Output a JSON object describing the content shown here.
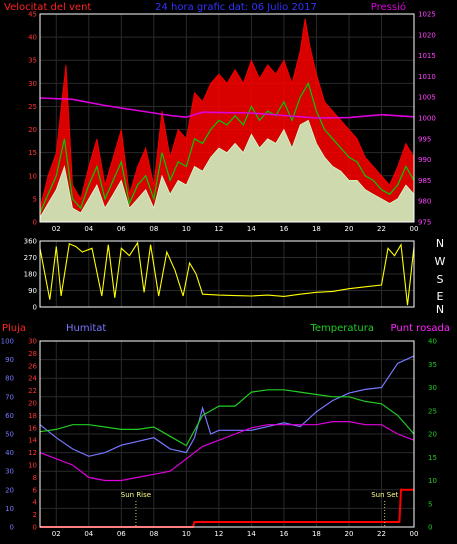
{
  "header": {
    "left": "Velocitat del vent",
    "center": "24 hora grafic dat: 06 Julio 2017",
    "right": "Pressió"
  },
  "colors": {
    "wind_gust": "#ff0000",
    "wind_speed": "#00cc00",
    "wind_avg": "#ccffcc",
    "pressure": "#dd00dd",
    "direction": "#ffff00",
    "rain": "#ff0000",
    "humidity": "#7777ff",
    "temperature": "#22cc22",
    "dewpoint": "#dd00dd",
    "sun_marker": "#ffff88",
    "grid": "#2a2a2a",
    "axis_text": "#ffffff"
  },
  "panel2": {
    "labels_right": [
      "N",
      "W",
      "S",
      "E",
      "N"
    ]
  },
  "panel3": {
    "labels": {
      "rain": "Pluja",
      "humidity": "Humitat",
      "temperature": "Temperatura",
      "dewpoint": "Punt rosada"
    },
    "sunrise": "Sun Rise",
    "sunset": "Sun Set"
  },
  "chart_data": [
    {
      "type": "line",
      "title": "24 hora grafic dat: 06 Julio 2017",
      "x_ticks": [
        "02",
        "04",
        "06",
        "08",
        "10",
        "12",
        "14",
        "16",
        "18",
        "20",
        "22",
        "00"
      ],
      "xlim": [
        1,
        24
      ],
      "grid": true,
      "y_left": {
        "label": "Velocitat del vent",
        "ylim": [
          0,
          45
        ],
        "ticks": [
          0,
          5,
          10,
          15,
          20,
          25,
          30,
          35,
          40,
          45
        ]
      },
      "y_right": {
        "label": "Pressió",
        "ylim": [
          975,
          1025
        ],
        "ticks": [
          975,
          980,
          985,
          990,
          995,
          1000,
          1005,
          1010,
          1015,
          1020,
          1025
        ]
      },
      "series": [
        {
          "name": "gust",
          "axis": "left",
          "x": [
            1,
            1.5,
            2,
            2.4,
            2.6,
            3,
            3.5,
            4,
            4.5,
            5,
            5.5,
            6,
            6.5,
            7,
            7.5,
            8,
            8.5,
            9,
            9.5,
            10,
            10.5,
            11,
            11.5,
            12,
            12.5,
            13,
            13.5,
            14,
            14.5,
            15,
            15.5,
            16,
            16.5,
            17,
            17.3,
            17.6,
            18,
            18.5,
            19,
            19.5,
            20,
            20.5,
            21,
            21.5,
            22,
            22.5,
            23,
            23.5,
            24
          ],
          "y": [
            3,
            10,
            15,
            28,
            34,
            8,
            5,
            12,
            18,
            8,
            14,
            20,
            6,
            12,
            16,
            8,
            24,
            14,
            20,
            18,
            28,
            26,
            30,
            32,
            30,
            33,
            30,
            35,
            31,
            34,
            32,
            35,
            30,
            37,
            44,
            38,
            32,
            26,
            24,
            22,
            20,
            18,
            14,
            12,
            10,
            8,
            12,
            17,
            14
          ]
        },
        {
          "name": "speed",
          "axis": "left",
          "x": [
            1,
            1.5,
            2,
            2.5,
            3,
            3.5,
            4,
            4.5,
            5,
            5.5,
            6,
            6.5,
            7,
            7.5,
            8,
            8.5,
            9,
            9.5,
            10,
            10.5,
            11,
            11.5,
            12,
            12.5,
            13,
            13.5,
            14,
            14.5,
            15,
            15.5,
            16,
            16.5,
            17,
            17.5,
            18,
            18.5,
            19,
            19.5,
            20,
            20.5,
            21,
            21.5,
            22,
            22.5,
            23,
            23.5,
            24
          ],
          "y": [
            2,
            6,
            10,
            18,
            5,
            3,
            8,
            12,
            5,
            9,
            13,
            4,
            8,
            10,
            5,
            15,
            9,
            13,
            12,
            18,
            17,
            20,
            22,
            21,
            23,
            21,
            25,
            22,
            24,
            23,
            26,
            22,
            27,
            30,
            24,
            20,
            18,
            16,
            14,
            13,
            10,
            9,
            7,
            6,
            8,
            12,
            9
          ]
        },
        {
          "name": "average",
          "axis": "left",
          "x": [
            1,
            1.5,
            2,
            2.5,
            3,
            3.5,
            4,
            4.5,
            5,
            5.5,
            6,
            6.5,
            7,
            7.5,
            8,
            8.5,
            9,
            9.5,
            10,
            10.5,
            11,
            11.5,
            12,
            12.5,
            13,
            13.5,
            14,
            14.5,
            15,
            15.5,
            16,
            16.5,
            17,
            17.5,
            18,
            18.5,
            19,
            19.5,
            20,
            20.5,
            21,
            21.5,
            22,
            22.5,
            23,
            23.5,
            24
          ],
          "y": [
            1,
            4,
            7,
            12,
            3,
            2,
            5,
            8,
            3,
            6,
            9,
            3,
            5,
            7,
            3,
            10,
            6,
            9,
            8,
            12,
            11,
            14,
            16,
            15,
            17,
            15,
            19,
            16,
            18,
            17,
            20,
            16,
            21,
            22,
            17,
            14,
            12,
            11,
            9,
            9,
            7,
            6,
            5,
            4,
            5,
            8,
            6
          ]
        },
        {
          "name": "pressure",
          "axis": "right",
          "x": [
            1,
            3,
            5,
            7,
            9,
            10,
            11,
            12,
            14,
            16,
            18,
            20,
            22,
            24
          ],
          "y": [
            1004.8,
            1004.5,
            1003.0,
            1001.8,
            1000.6,
            1000.2,
            1001.4,
            1001.3,
            1001.2,
            1000.6,
            1000.0,
            1000.1,
            1000.8,
            1000.3
          ]
        }
      ]
    },
    {
      "type": "line",
      "x_ticks": [
        "02",
        "04",
        "06",
        "08",
        "10",
        "12",
        "14",
        "16",
        "18",
        "20",
        "22",
        "00"
      ],
      "xlim": [
        1,
        24
      ],
      "y_left": {
        "ylim": [
          0,
          360
        ],
        "ticks": [
          0,
          90,
          180,
          270,
          360
        ]
      },
      "series": [
        {
          "name": "direction",
          "x": [
            1,
            1.6,
            2.0,
            2.3,
            2.8,
            3.2,
            3.6,
            4.2,
            4.8,
            5.2,
            5.6,
            6.0,
            6.5,
            7.0,
            7.4,
            7.8,
            8.3,
            8.8,
            9.3,
            9.8,
            10.2,
            10.6,
            11.0,
            12,
            13,
            14,
            15,
            16,
            17,
            18,
            19,
            20,
            21,
            22,
            22.4,
            22.8,
            23.2,
            23.6,
            24
          ],
          "y": [
            320,
            40,
            330,
            60,
            345,
            330,
            300,
            320,
            60,
            340,
            50,
            320,
            280,
            350,
            80,
            340,
            60,
            300,
            200,
            60,
            240,
            180,
            70,
            65,
            62,
            60,
            65,
            58,
            70,
            80,
            85,
            100,
            110,
            120,
            320,
            280,
            340,
            10,
            330
          ]
        }
      ]
    },
    {
      "type": "line",
      "x_ticks": [
        "02",
        "04",
        "06",
        "08",
        "10",
        "12",
        "14",
        "16",
        "18",
        "20",
        "22",
        "00"
      ],
      "xlim": [
        1,
        24
      ],
      "y_rain": {
        "label": "Pluja",
        "ylim": [
          0,
          30
        ],
        "ticks": [
          0,
          2,
          4,
          6,
          8,
          10,
          12,
          14,
          16,
          18,
          20,
          22,
          24,
          26,
          28,
          30
        ]
      },
      "y_humidity": {
        "label": "Humitat",
        "ylim": [
          0,
          100
        ],
        "ticks": [
          0,
          10,
          20,
          30,
          40,
          50,
          60,
          70,
          80,
          90,
          100
        ]
      },
      "y_temperature": {
        "label": "Temperatura",
        "ylim": [
          0,
          40
        ],
        "ticks": [
          0,
          5,
          10,
          15,
          20,
          25,
          30,
          35,
          40
        ]
      },
      "annotations": [
        {
          "text": "Sun Rise",
          "x": 6.9
        },
        {
          "text": "Sun Set",
          "x": 22.2
        }
      ],
      "series": [
        {
          "name": "Pluja",
          "axis": "rain",
          "x": [
            1,
            10.4,
            10.5,
            23.1,
            23.2,
            24
          ],
          "y": [
            0,
            0,
            0.8,
            0.8,
            6.0,
            6.0
          ]
        },
        {
          "name": "Humitat",
          "axis": "humidity",
          "x": [
            1,
            2,
            3,
            4,
            5,
            6,
            7,
            8,
            9,
            10,
            10.5,
            11,
            11.5,
            12,
            14,
            15,
            16,
            17,
            18,
            19,
            20,
            21,
            22,
            23,
            24
          ],
          "y": [
            55,
            48,
            42,
            38,
            40,
            44,
            46,
            48,
            42,
            40,
            48,
            64,
            50,
            52,
            52,
            54,
            56,
            54,
            62,
            68,
            72,
            74,
            75,
            88,
            92
          ]
        },
        {
          "name": "Temperatura",
          "axis": "temperature",
          "x": [
            1,
            2,
            3,
            4,
            5,
            6,
            7,
            8,
            9,
            10,
            11,
            12,
            13,
            14,
            15,
            16,
            17,
            18,
            19,
            20,
            21,
            22,
            23,
            24
          ],
          "y": [
            20.5,
            21,
            22,
            22,
            21.5,
            21,
            21,
            21.5,
            19.5,
            17.5,
            24,
            26,
            26,
            29,
            29.5,
            29.5,
            29,
            28.5,
            28,
            28,
            27,
            26.5,
            24,
            20
          ]
        },
        {
          "name": "Punt rosada",
          "axis": "rain",
          "x": [
            1,
            2,
            3,
            4,
            5,
            6,
            7,
            8,
            9,
            10,
            11,
            12,
            13,
            14,
            15,
            16,
            17,
            18,
            19,
            20,
            21,
            22,
            23,
            24
          ],
          "y": [
            12,
            11,
            10,
            8,
            7.5,
            7.5,
            8,
            8.5,
            9,
            11,
            13,
            14,
            15,
            16,
            16.5,
            16.5,
            16.5,
            16.5,
            17,
            17,
            16.5,
            16.5,
            15,
            14
          ]
        }
      ]
    }
  ]
}
